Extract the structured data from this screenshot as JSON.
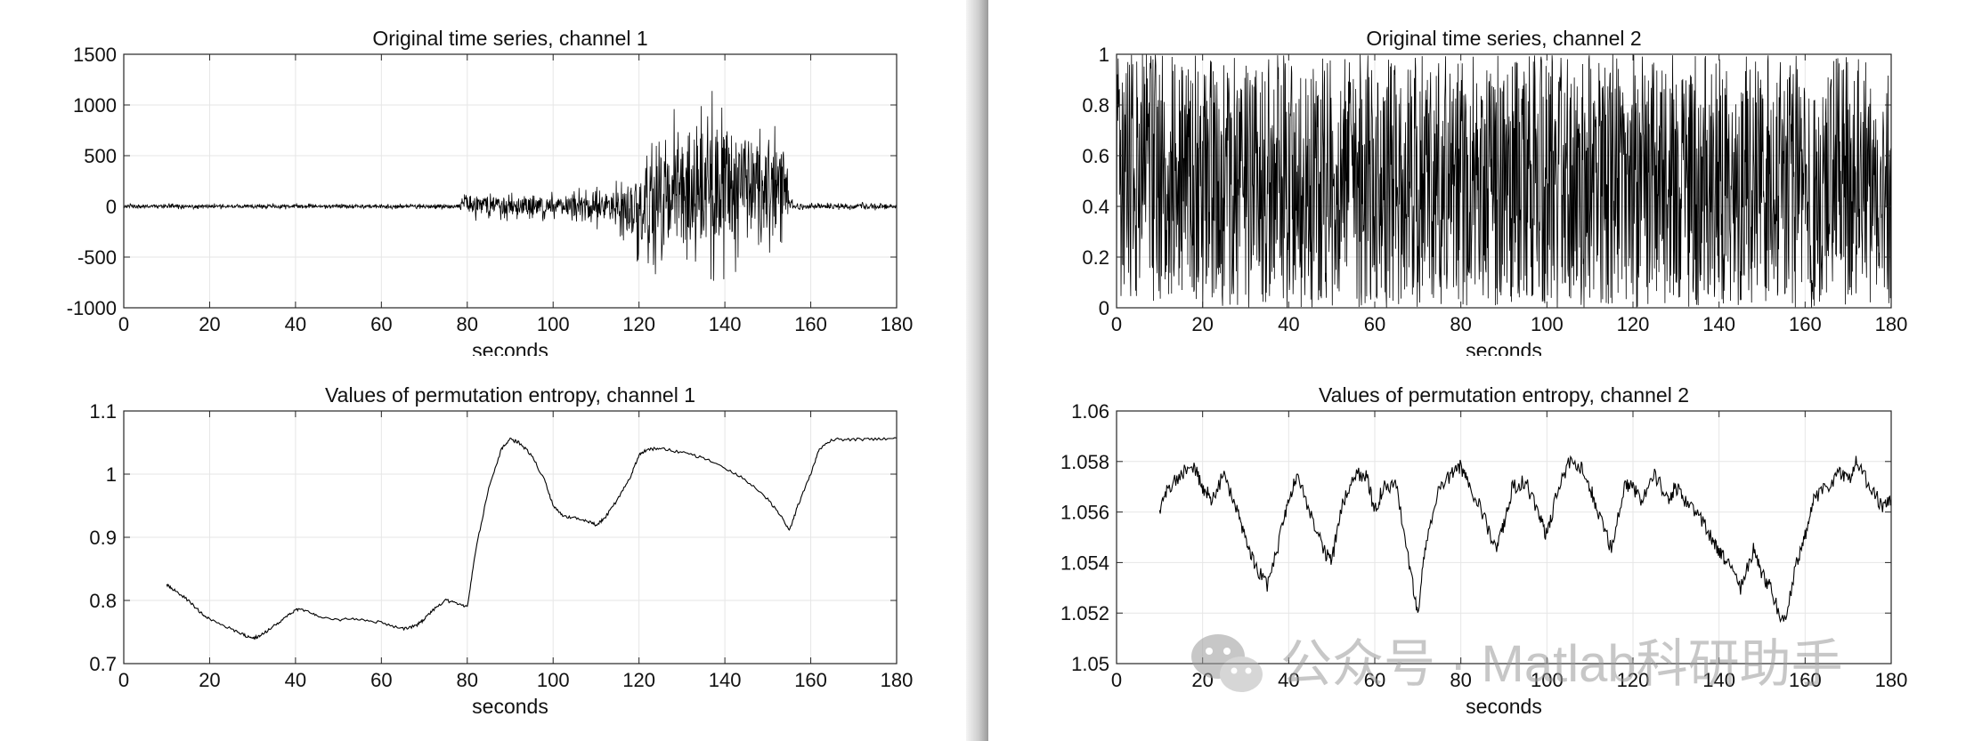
{
  "chart_data": [
    {
      "type": "line",
      "title": "Original time series, channel 1",
      "xlabel": "seconds",
      "ylabel": "",
      "xlim": [
        0,
        180
      ],
      "ylim": [
        -1000,
        1500
      ],
      "xticks": [
        0,
        20,
        40,
        60,
        80,
        100,
        120,
        140,
        160,
        180
      ],
      "yticks": [
        -1000,
        -500,
        0,
        500,
        1000,
        1500
      ],
      "grid": true,
      "line_color": "#000000",
      "series": [
        {
          "x": [
            0,
            20,
            40,
            60,
            78,
            80,
            90,
            100,
            110,
            115,
            118,
            120,
            125,
            130,
            135,
            140,
            145,
            150,
            154,
            155,
            160,
            170,
            180
          ],
          "y_envelope_max": [
            30,
            30,
            30,
            25,
            30,
            180,
            150,
            160,
            200,
            300,
            420,
            600,
            900,
            1000,
            1220,
            1180,
            1050,
            880,
            800,
            80,
            40,
            40,
            40
          ],
          "y_envelope_min": [
            -30,
            -30,
            -30,
            -25,
            -30,
            -140,
            -150,
            -150,
            -220,
            -350,
            -480,
            -620,
            -750,
            -800,
            -750,
            -720,
            -620,
            -520,
            -450,
            -60,
            -40,
            -40,
            -40
          ]
        }
      ]
    },
    {
      "type": "line",
      "title": "Original time series, channel 2",
      "xlabel": "seconds",
      "ylabel": "",
      "xlim": [
        0,
        180
      ],
      "ylim": [
        0,
        1
      ],
      "xticks": [
        0,
        20,
        40,
        60,
        80,
        100,
        120,
        140,
        160,
        180
      ],
      "yticks": [
        0,
        0.2,
        0.4,
        0.6,
        0.8,
        1
      ],
      "grid": true,
      "line_color": "#000000",
      "series": [
        {
          "x": [
            0,
            180
          ],
          "y_envelope_min": [
            0.0,
            0.0
          ],
          "y_envelope_max": [
            1.0,
            1.0
          ]
        }
      ]
    },
    {
      "type": "line",
      "title": "Values of permutation entropy, channel 1",
      "xlabel": "seconds",
      "ylabel": "",
      "xlim": [
        0,
        180
      ],
      "ylim": [
        0.7,
        1.1
      ],
      "xticks": [
        0,
        20,
        40,
        60,
        80,
        100,
        120,
        140,
        160,
        180
      ],
      "yticks": [
        0.7,
        0.8,
        0.9,
        1,
        1.1
      ],
      "grid": true,
      "line_color": "#000000",
      "series": [
        {
          "x": [
            10,
            12,
            15,
            18,
            20,
            25,
            28,
            30,
            32,
            35,
            38,
            40,
            42,
            45,
            50,
            55,
            60,
            65,
            68,
            70,
            72,
            75,
            78,
            80,
            82,
            85,
            88,
            90,
            92,
            95,
            98,
            100,
            102,
            105,
            108,
            110,
            112,
            115,
            118,
            120,
            122,
            125,
            130,
            135,
            140,
            145,
            150,
            153,
            155,
            157,
            160,
            162,
            165,
            170,
            175,
            180
          ],
          "y": [
            0.825,
            0.815,
            0.8,
            0.78,
            0.77,
            0.755,
            0.745,
            0.74,
            0.745,
            0.76,
            0.775,
            0.785,
            0.785,
            0.775,
            0.77,
            0.77,
            0.765,
            0.755,
            0.76,
            0.77,
            0.785,
            0.8,
            0.795,
            0.79,
            0.88,
            0.98,
            1.04,
            1.055,
            1.05,
            1.03,
            0.99,
            0.95,
            0.935,
            0.93,
            0.925,
            0.92,
            0.93,
            0.96,
            0.995,
            1.03,
            1.04,
            1.04,
            1.035,
            1.025,
            1.01,
            0.99,
            0.96,
            0.935,
            0.91,
            0.95,
            1.0,
            1.04,
            1.055,
            1.055,
            1.055,
            1.057
          ]
        }
      ]
    },
    {
      "type": "line",
      "title": "Values of permutation entropy, channel 2",
      "xlabel": "seconds",
      "ylabel": "",
      "xlim": [
        0,
        180
      ],
      "ylim": [
        1.05,
        1.06
      ],
      "xticks": [
        0,
        20,
        40,
        60,
        80,
        100,
        120,
        140,
        160,
        180
      ],
      "yticks": [
        1.05,
        1.052,
        1.054,
        1.056,
        1.058,
        1.06
      ],
      "grid": true,
      "line_color": "#000000",
      "series": [
        {
          "x": [
            10,
            12,
            15,
            18,
            20,
            22,
            25,
            28,
            30,
            32,
            35,
            38,
            40,
            42,
            45,
            48,
            50,
            52,
            55,
            58,
            60,
            62,
            65,
            68,
            70,
            72,
            75,
            78,
            80,
            82,
            85,
            88,
            90,
            92,
            95,
            98,
            100,
            102,
            105,
            108,
            110,
            112,
            115,
            118,
            120,
            122,
            125,
            128,
            130,
            132,
            135,
            138,
            140,
            142,
            145,
            148,
            150,
            152,
            155,
            158,
            160,
            162,
            165,
            168,
            170,
            172,
            175,
            178,
            180
          ],
          "y": [
            1.056,
            1.057,
            1.0575,
            1.0578,
            1.057,
            1.0565,
            1.0575,
            1.056,
            1.055,
            1.054,
            1.053,
            1.055,
            1.0565,
            1.0575,
            1.056,
            1.0545,
            1.054,
            1.056,
            1.0575,
            1.0575,
            1.056,
            1.057,
            1.057,
            1.054,
            1.052,
            1.055,
            1.057,
            1.0575,
            1.0578,
            1.057,
            1.056,
            1.0545,
            1.0555,
            1.057,
            1.0572,
            1.056,
            1.055,
            1.0565,
            1.058,
            1.0578,
            1.057,
            1.056,
            1.0545,
            1.057,
            1.057,
            1.0565,
            1.0575,
            1.0565,
            1.057,
            1.0565,
            1.056,
            1.055,
            1.0545,
            1.054,
            1.053,
            1.0545,
            1.0535,
            1.053,
            1.0515,
            1.054,
            1.055,
            1.0565,
            1.057,
            1.0575,
            1.0572,
            1.058,
            1.057,
            1.0562,
            1.0565
          ]
        }
      ]
    }
  ],
  "watermark": {
    "text": "公众号 · Matlab科研助手",
    "icon": "wechat-icon"
  }
}
